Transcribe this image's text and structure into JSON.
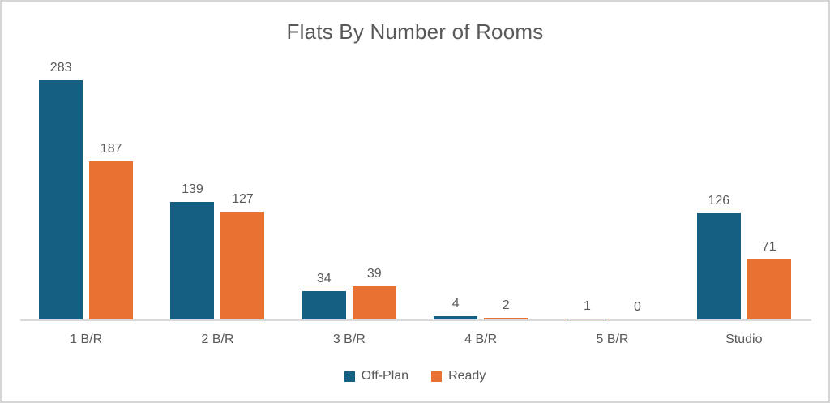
{
  "colors": {
    "off_plan": "#156082",
    "ready": "#E97132",
    "text": "#595959",
    "axis_line": "#d9d9d9",
    "frame_border": "#d6d6d6"
  },
  "chart_data": {
    "type": "bar",
    "title": "Flats By Number of Rooms",
    "categories": [
      "1 B/R",
      "2 B/R",
      "3 B/R",
      "4 B/R",
      "5 B/R",
      "Studio"
    ],
    "series": [
      {
        "name": "Off-Plan",
        "color": "#156082",
        "values": [
          283,
          139,
          34,
          4,
          1,
          126
        ]
      },
      {
        "name": "Ready",
        "color": "#E97132",
        "values": [
          187,
          127,
          39,
          2,
          0,
          71
        ]
      }
    ],
    "xlabel": "",
    "ylabel": "",
    "ylim": [
      0,
      300
    ],
    "grid": false,
    "data_labels": true,
    "legend_position": "bottom"
  }
}
